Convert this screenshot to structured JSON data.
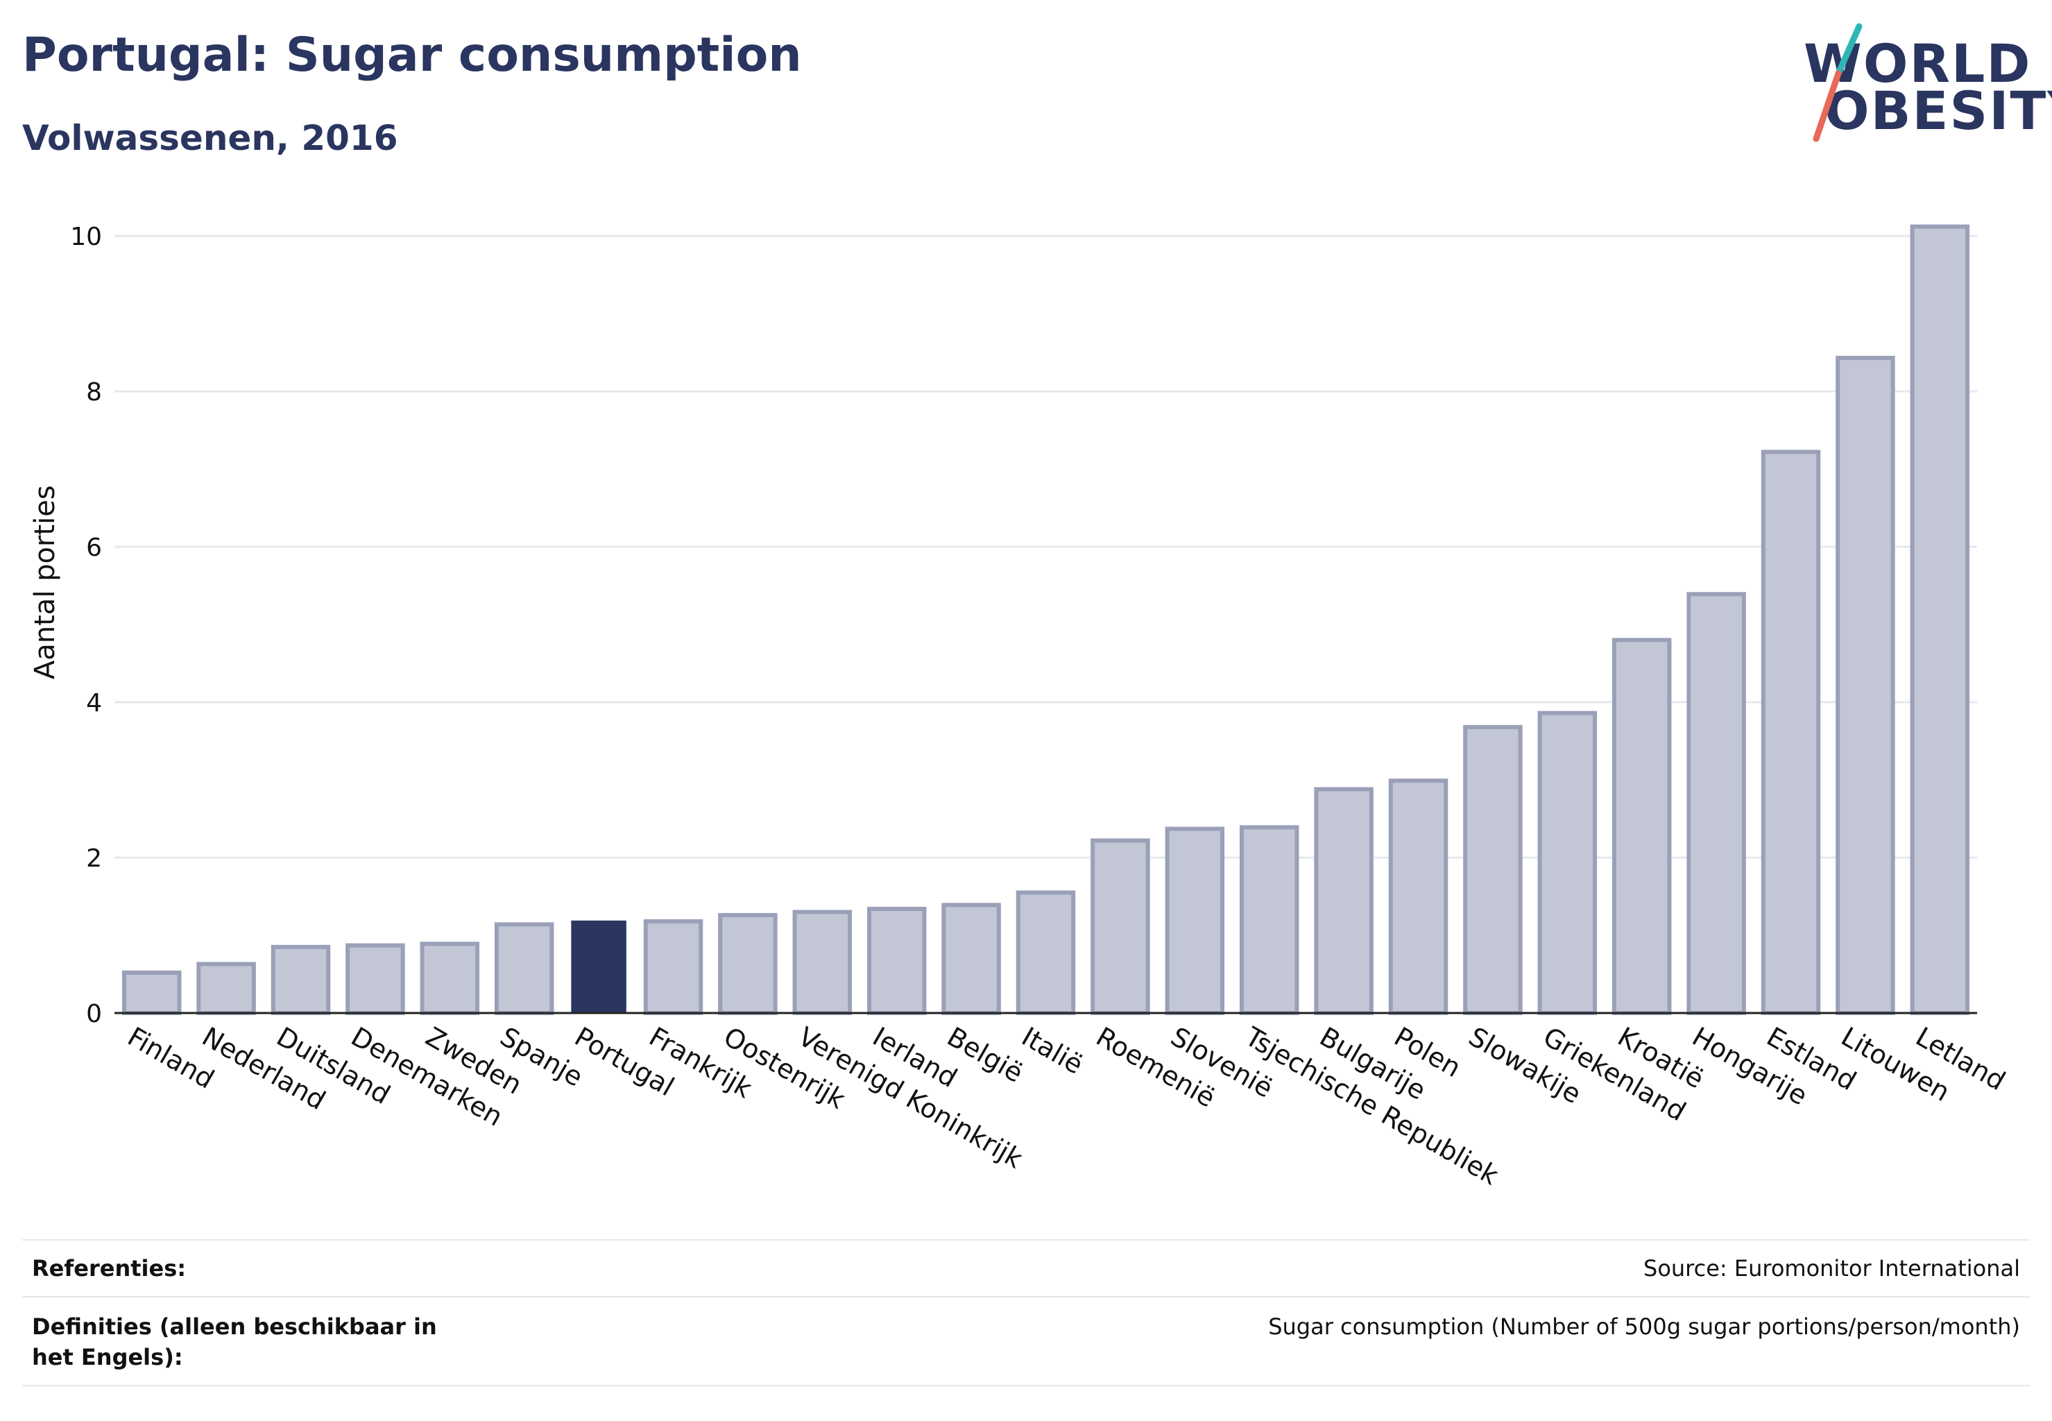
{
  "title": "Portugal: Sugar consumption",
  "subtitle": "Volwassenen, 2016",
  "logo": {
    "line1": "WORLD",
    "line2": "OBESITY"
  },
  "footer": {
    "references_label": "Referenties:",
    "references_value": "Source: Euromonitor International",
    "definitions_label": "Definities (alleen beschikbaar in het Engels):",
    "definitions_value": "Sugar consumption (Number of 500g sugar portions/person/month)"
  },
  "colors": {
    "bar": "#c3c7d5",
    "bar_stroke": "#9aa0b8",
    "highlight": "#2a3560",
    "text": "#2a3560"
  },
  "chart_data": {
    "type": "bar",
    "title": "Portugal: Sugar consumption",
    "subtitle": "Volwassenen, 2016",
    "ylabel": "Aantal porties",
    "xlabel": "",
    "ylim": [
      0,
      10.5
    ],
    "yticks": [
      0,
      2,
      4,
      6,
      8,
      10
    ],
    "grid": true,
    "highlight": "Portugal",
    "categories": [
      "Finland",
      "Nederland",
      "Duitsland",
      "Denemarken",
      "Zweden",
      "Spanje",
      "Portugal",
      "Frankrijk",
      "Oostenrijk",
      "Verenigd Koninkrijk",
      "Ierland",
      "België",
      "Italië",
      "Roemenië",
      "Slovenië",
      "Tsjechische Republiek",
      "Bulgarije",
      "Polen",
      "Slowakije",
      "Griekenland",
      "Kroatië",
      "Hongarije",
      "Estland",
      "Litouwen",
      "Letland"
    ],
    "values": [
      0.52,
      0.63,
      0.85,
      0.87,
      0.89,
      1.14,
      1.19,
      1.18,
      1.26,
      1.3,
      1.34,
      1.39,
      1.55,
      2.22,
      2.37,
      2.39,
      2.88,
      2.99,
      3.68,
      3.86,
      4.8,
      5.39,
      7.22,
      8.43,
      10.12
    ]
  }
}
